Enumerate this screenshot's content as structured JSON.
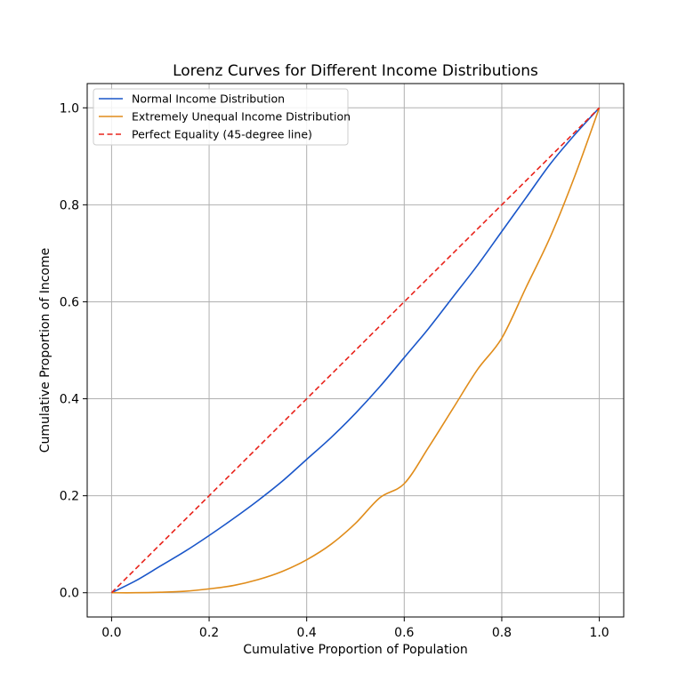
{
  "chart_data": {
    "type": "line",
    "title": "Lorenz Curves for Different Income Distributions",
    "xlabel": "Cumulative Proportion of Population",
    "ylabel": "Cumulative Proportion of Income",
    "xlim": [
      -0.05,
      1.05
    ],
    "ylim": [
      -0.05,
      1.05
    ],
    "xticks": [
      0.0,
      0.2,
      0.4,
      0.6,
      0.8,
      1.0
    ],
    "yticks": [
      0.0,
      0.2,
      0.4,
      0.6,
      0.8,
      1.0
    ],
    "xtick_labels": [
      "0.0",
      "0.2",
      "0.4",
      "0.6",
      "0.8",
      "1.0"
    ],
    "ytick_labels": [
      "0.0",
      "0.2",
      "0.4",
      "0.6",
      "0.8",
      "1.0"
    ],
    "grid": true,
    "legend_placement": "upper-left",
    "series": [
      {
        "name": "Normal Income Distribution",
        "color": "#1a56c9",
        "style": "solid",
        "x": [
          0.0,
          0.05,
          0.1,
          0.15,
          0.2,
          0.25,
          0.3,
          0.35,
          0.4,
          0.45,
          0.5,
          0.55,
          0.6,
          0.65,
          0.7,
          0.75,
          0.8,
          0.85,
          0.9,
          0.95,
          1.0
        ],
        "y": [
          0.0,
          0.025,
          0.055,
          0.085,
          0.118,
          0.153,
          0.19,
          0.23,
          0.275,
          0.32,
          0.37,
          0.425,
          0.485,
          0.545,
          0.61,
          0.675,
          0.745,
          0.815,
          0.885,
          0.945,
          1.0
        ]
      },
      {
        "name": "Extremely Unequal Income Distribution",
        "color": "#e08c1a",
        "style": "solid",
        "x": [
          0.0,
          0.05,
          0.1,
          0.15,
          0.2,
          0.25,
          0.3,
          0.35,
          0.4,
          0.45,
          0.5,
          0.55,
          0.6,
          0.65,
          0.7,
          0.75,
          0.8,
          0.85,
          0.9,
          0.95,
          1.0
        ],
        "y": [
          0.0,
          0.0,
          0.001,
          0.003,
          0.008,
          0.015,
          0.027,
          0.044,
          0.068,
          0.1,
          0.143,
          0.196,
          0.225,
          0.3,
          0.38,
          0.46,
          0.525,
          0.63,
          0.735,
          0.86,
          1.0
        ]
      },
      {
        "name": "Perfect Equality (45-degree line)",
        "color": "#e8231b",
        "style": "dashed",
        "x": [
          0.0,
          1.0
        ],
        "y": [
          0.0,
          1.0
        ]
      }
    ]
  }
}
